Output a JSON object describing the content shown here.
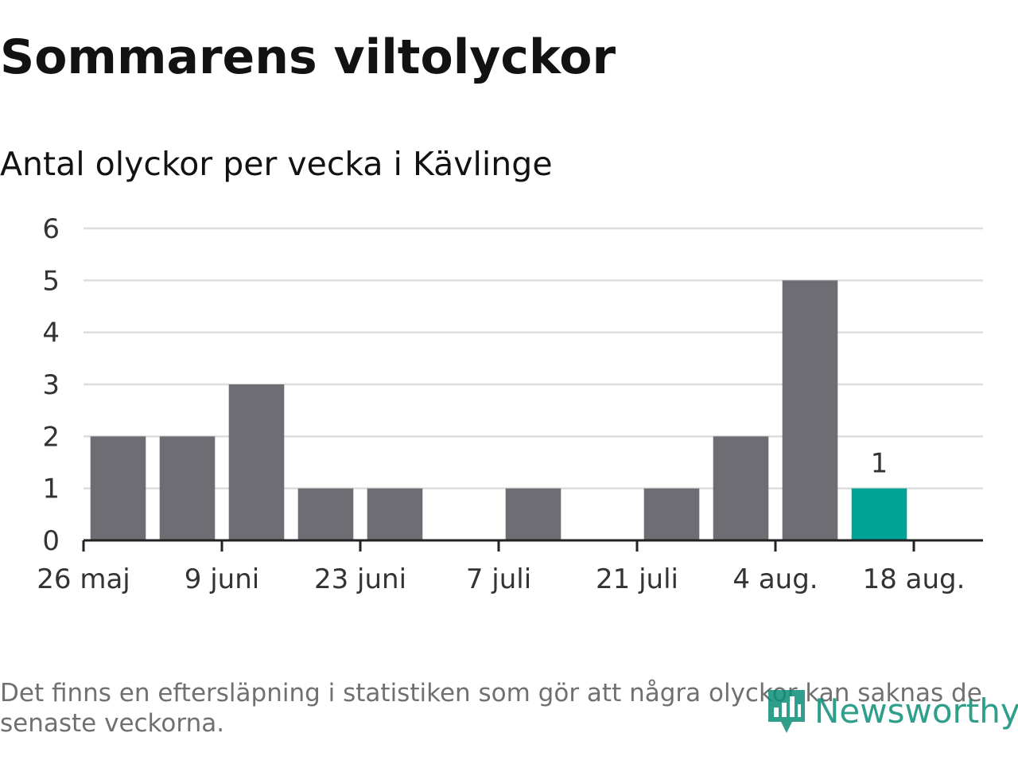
{
  "title": "Sommarens viltolyckor",
  "subtitle": "Antal olyckor per vecka i Kävlinge",
  "footnote": "Det finns en eftersläpning i statistiken som gör att några olyckor kan saknas de senaste veckorna.",
  "logo": {
    "text": "Newsworthy",
    "icon": "bar-chart-pin-icon",
    "color": "#0b8f78"
  },
  "colors": {
    "bar": "#6e6d73",
    "highlight": "#00a497",
    "grid": "#dddddd",
    "axis": "#222222"
  },
  "chart_data": {
    "type": "bar",
    "title": "Sommarens viltolyckor",
    "subtitle": "Antal olyckor per vecka i Kävlinge",
    "xlabel": "",
    "ylabel": "",
    "ylim": [
      0,
      6
    ],
    "yticks": [
      "0",
      "1",
      "2",
      "3",
      "4",
      "5",
      "6"
    ],
    "x_dates": [
      "2019-06-02",
      "2019-06-09",
      "2019-06-16",
      "2019-06-23",
      "2019-06-30",
      "2019-07-07",
      "2019-07-14",
      "2019-07-21",
      "2019-07-28",
      "2019-08-04",
      "2019-08-11",
      "2019-08-18"
    ],
    "values": [
      2,
      2,
      3,
      1,
      1,
      0,
      1,
      0,
      1,
      2,
      5,
      1
    ],
    "highlight_index": 11,
    "highlight_label": "1",
    "xticks": [
      {
        "date": "2019-05-26",
        "label": "26 maj"
      },
      {
        "date": "2019-06-09",
        "label": "9 juni"
      },
      {
        "date": "2019-06-23",
        "label": "23 juni"
      },
      {
        "date": "2019-07-07",
        "label": "7 juli"
      },
      {
        "date": "2019-07-21",
        "label": "21 juli"
      },
      {
        "date": "2019-08-04",
        "label": "4 aug."
      },
      {
        "date": "2019-08-18",
        "label": "18 aug."
      }
    ],
    "xlim": [
      "2019-05-26",
      "2019-08-25"
    ],
    "grid": true,
    "legend": "none"
  }
}
